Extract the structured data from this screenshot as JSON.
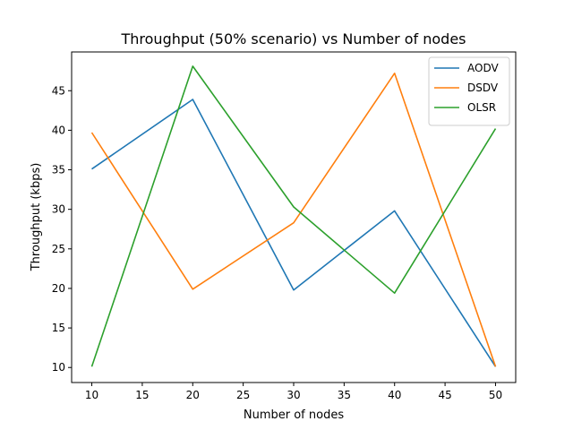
{
  "chart_data": {
    "type": "line",
    "title": "Throughput (50% scenario) vs Number of nodes",
    "xlabel": "Number of nodes",
    "ylabel": "Throughput (kbps)",
    "x": [
      10,
      20,
      30,
      40,
      50
    ],
    "xlim": [
      8,
      52
    ],
    "ylim": [
      8.1,
      49.9
    ],
    "xticks": [
      10,
      15,
      20,
      25,
      30,
      35,
      40,
      45,
      50
    ],
    "yticks": [
      10,
      15,
      20,
      25,
      30,
      35,
      40,
      45
    ],
    "grid": false,
    "legend_position": "top-right",
    "series": [
      {
        "name": "AODV",
        "color": "#1f77b4",
        "values": [
          35.1,
          43.9,
          19.8,
          29.8,
          10.1
        ]
      },
      {
        "name": "DSDV",
        "color": "#ff7f0e",
        "values": [
          39.7,
          19.9,
          28.3,
          47.2,
          10.1
        ]
      },
      {
        "name": "OLSR",
        "color": "#2ca02c",
        "values": [
          10.1,
          48.1,
          30.3,
          19.4,
          40.2
        ]
      }
    ]
  }
}
